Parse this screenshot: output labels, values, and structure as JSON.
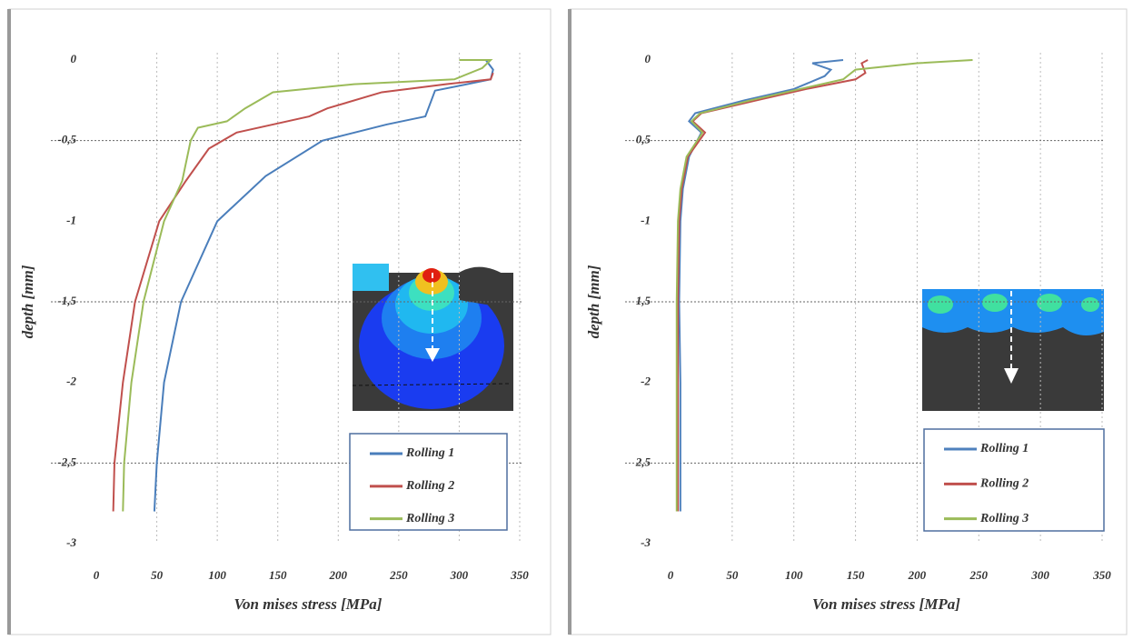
{
  "chart_data": [
    {
      "type": "line",
      "xlabel": "Von mises stress [MPa]",
      "ylabel": "depth [mm]",
      "xlim": [
        0,
        350
      ],
      "ylim": [
        -3,
        0
      ],
      "xticks": [
        0,
        50,
        100,
        150,
        200,
        250,
        300,
        350
      ],
      "yticks": [
        0,
        {
          "value": -0.5,
          "label": "-0,5"
        },
        -1,
        {
          "value": -1.5,
          "label": "-1,5"
        },
        -2,
        {
          "value": -2.5,
          "label": "-2,5"
        },
        -3
      ],
      "xgrid": true,
      "ygrid": [
        -0.5,
        -1.5,
        -2.5
      ],
      "series": [
        {
          "name": "Rolling 1",
          "color": "#4a7ebb",
          "x": [
            48,
            50,
            56,
            70,
            100,
            140,
            187,
            240,
            272,
            280,
            300,
            326,
            328,
            322
          ],
          "values": [
            -2.8,
            -2.5,
            -2,
            -1.5,
            -1,
            -0.72,
            -0.5,
            -0.4,
            -0.35,
            -0.19,
            -0.16,
            -0.12,
            -0.06,
            0
          ]
        },
        {
          "name": "Rolling 2",
          "color": "#c0504d",
          "x": [
            14,
            15,
            22,
            32,
            52,
            74,
            93,
            116,
            146,
            176,
            191,
            236,
            289,
            326,
            328
          ],
          "values": [
            -2.8,
            -2.5,
            -2,
            -1.5,
            -1,
            -0.75,
            -0.55,
            -0.45,
            -0.4,
            -0.35,
            -0.3,
            -0.2,
            -0.15,
            -0.12,
            -0.08
          ]
        },
        {
          "name": "Rolling 3",
          "color": "#9bbb59",
          "x": [
            22,
            23,
            29,
            39,
            56,
            71,
            78,
            84,
            108,
            123,
            146,
            213,
            296,
            319,
            326,
            300
          ],
          "values": [
            -2.8,
            -2.5,
            -2,
            -1.5,
            -1,
            -0.75,
            -0.5,
            -0.42,
            -0.38,
            -0.3,
            -0.2,
            -0.15,
            -0.12,
            -0.05,
            0,
            0
          ]
        }
      ]
    },
    {
      "type": "line",
      "xlabel": "Von mises stress [MPa]",
      "ylabel": "depth [mm]",
      "xlim": [
        0,
        350
      ],
      "ylim": [
        -3,
        0
      ],
      "xticks": [
        0,
        50,
        100,
        150,
        200,
        250,
        300,
        350
      ],
      "yticks": [
        0,
        {
          "value": -0.5,
          "label": "0,5"
        },
        -1,
        {
          "value": -1.5,
          "label": "1,5"
        },
        -2,
        {
          "value": -2.5,
          "label": "2,5"
        },
        -3
      ],
      "xgrid": true,
      "ygrid": [
        -0.5,
        -1.5,
        -2.5
      ],
      "series": [
        {
          "name": "Rolling 1",
          "color": "#4f81bd",
          "x": [
            8,
            8,
            7,
            8,
            10,
            15,
            25,
            15,
            20,
            60,
            100,
            125,
            130,
            115,
            140
          ],
          "values": [
            -2.8,
            -2,
            -1.5,
            -1,
            -0.8,
            -0.6,
            -0.45,
            -0.38,
            -0.33,
            -0.25,
            -0.18,
            -0.1,
            -0.06,
            -0.02,
            0
          ]
        },
        {
          "name": "Rolling 2",
          "color": "#c0504d",
          "x": [
            6,
            6,
            6,
            7,
            9,
            14,
            28,
            18,
            25,
            70,
            110,
            150,
            158,
            155,
            160
          ],
          "values": [
            -2.8,
            -2,
            -1.5,
            -1,
            -0.8,
            -0.6,
            -0.45,
            -0.38,
            -0.33,
            -0.25,
            -0.18,
            -0.12,
            -0.08,
            -0.02,
            0
          ]
        },
        {
          "name": "Rolling 3",
          "color": "#9bbb59",
          "x": [
            5,
            5,
            5,
            6,
            8,
            13,
            26,
            17,
            24,
            65,
            105,
            140,
            150,
            200,
            245
          ],
          "values": [
            -2.8,
            -2,
            -1.5,
            -1,
            -0.8,
            -0.6,
            -0.45,
            -0.38,
            -0.33,
            -0.25,
            -0.18,
            -0.12,
            -0.06,
            -0.02,
            0
          ]
        }
      ]
    }
  ]
}
